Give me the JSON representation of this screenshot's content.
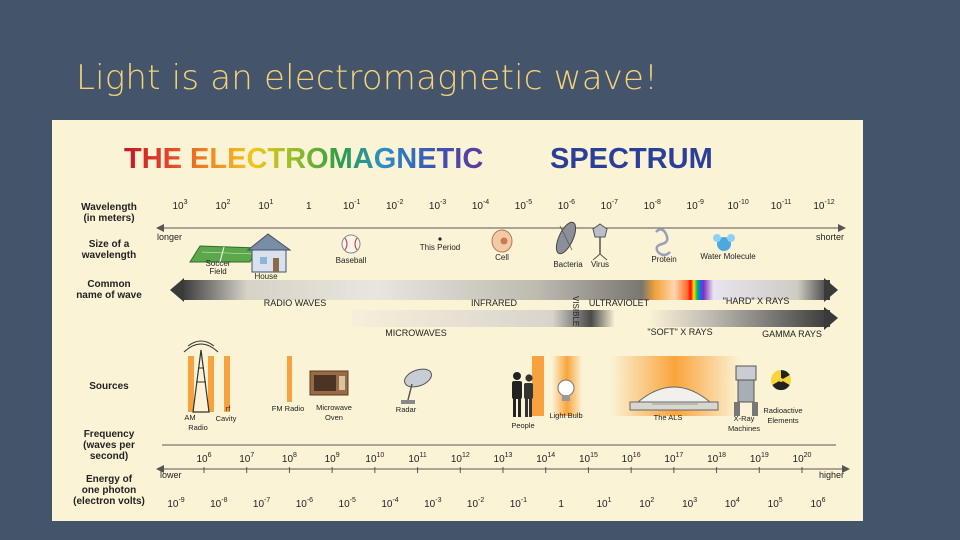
{
  "slide": {
    "title": "Light is an electromagnetic wave!"
  },
  "spectrum": {
    "heading_part1": "THE ELECTROMAGNETIC",
    "heading_part2": "SPECTRUM",
    "colors": {
      "background": "#44546a",
      "title": "#f4d37a",
      "panel": "#fbf3d6",
      "band": "#f7a23f",
      "arrow": "#3b3b3b"
    },
    "rows": {
      "wavelength": [
        "Wavelength",
        "(in meters)"
      ],
      "size": [
        "Size of a",
        "wavelength"
      ],
      "common": [
        "Common",
        "name of wave"
      ],
      "sources": [
        "Sources"
      ],
      "frequency": [
        "Frequency",
        "(waves per",
        "second)"
      ],
      "energy": [
        "Energy of",
        "one photon",
        "(electron volts)"
      ]
    },
    "wavelength_ticks": [
      {
        "base": "10",
        "exp": "3"
      },
      {
        "base": "10",
        "exp": "2"
      },
      {
        "base": "10",
        "exp": "1"
      },
      {
        "base": "1",
        "exp": ""
      },
      {
        "base": "10",
        "exp": "-1"
      },
      {
        "base": "10",
        "exp": "-2"
      },
      {
        "base": "10",
        "exp": "-3"
      },
      {
        "base": "10",
        "exp": "-4"
      },
      {
        "base": "10",
        "exp": "-5"
      },
      {
        "base": "10",
        "exp": "-6"
      },
      {
        "base": "10",
        "exp": "-7"
      },
      {
        "base": "10",
        "exp": "-8"
      },
      {
        "base": "10",
        "exp": "-9"
      },
      {
        "base": "10",
        "exp": "-10"
      },
      {
        "base": "10",
        "exp": "-11"
      },
      {
        "base": "10",
        "exp": "-12"
      }
    ],
    "size_ends": {
      "left": "longer",
      "right": "shorter"
    },
    "size_objects": [
      "Soccer",
      "Field",
      "House",
      "Baseball",
      "This Period",
      "Cell",
      "Bacteria",
      "Virus",
      "Protein",
      "Water Molecule"
    ],
    "wave_names": {
      "radio": "RADIO WAVES",
      "microwaves": "MICROWAVES",
      "infrared": "INFRARED",
      "visible": "VISIBLE",
      "ultraviolet": "ULTRAVIOLET",
      "soft_xrays": "\"SOFT\" X RAYS",
      "hard_xrays": "\"HARD\" X RAYS",
      "gamma": "GAMMA RAYS"
    },
    "sources": {
      "am_radio": [
        "AM",
        "Radio"
      ],
      "rf_cavity": [
        "rf",
        "Cavity"
      ],
      "fm_radio": "FM Radio",
      "microwave_oven": [
        "Microwave",
        "Oven"
      ],
      "radar": "Radar",
      "people": "People",
      "light_bulb": "Light Bulb",
      "the_als": "The ALS",
      "xray_machines": [
        "X-Ray",
        "Machines"
      ],
      "radioactive": [
        "Radioactive",
        "Elements"
      ]
    },
    "frequency_ticks": [
      {
        "base": "10",
        "exp": "6"
      },
      {
        "base": "10",
        "exp": "7"
      },
      {
        "base": "10",
        "exp": "8"
      },
      {
        "base": "10",
        "exp": "9"
      },
      {
        "base": "10",
        "exp": "10"
      },
      {
        "base": "10",
        "exp": "11"
      },
      {
        "base": "10",
        "exp": "12"
      },
      {
        "base": "10",
        "exp": "13"
      },
      {
        "base": "10",
        "exp": "14"
      },
      {
        "base": "10",
        "exp": "15"
      },
      {
        "base": "10",
        "exp": "16"
      },
      {
        "base": "10",
        "exp": "17"
      },
      {
        "base": "10",
        "exp": "18"
      },
      {
        "base": "10",
        "exp": "19"
      },
      {
        "base": "10",
        "exp": "20"
      }
    ],
    "energy_ends": {
      "left": "lower",
      "right": "higher"
    },
    "energy_ticks": [
      {
        "base": "10",
        "exp": "-9"
      },
      {
        "base": "10",
        "exp": "-8"
      },
      {
        "base": "10",
        "exp": "-7"
      },
      {
        "base": "10",
        "exp": "-6"
      },
      {
        "base": "10",
        "exp": "-5"
      },
      {
        "base": "10",
        "exp": "-4"
      },
      {
        "base": "10",
        "exp": "-3"
      },
      {
        "base": "10",
        "exp": "-2"
      },
      {
        "base": "10",
        "exp": "-1"
      },
      {
        "base": "1",
        "exp": ""
      },
      {
        "base": "10",
        "exp": "1"
      },
      {
        "base": "10",
        "exp": "2"
      },
      {
        "base": "10",
        "exp": "3"
      },
      {
        "base": "10",
        "exp": "4"
      },
      {
        "base": "10",
        "exp": "5"
      },
      {
        "base": "10",
        "exp": "6"
      }
    ]
  }
}
